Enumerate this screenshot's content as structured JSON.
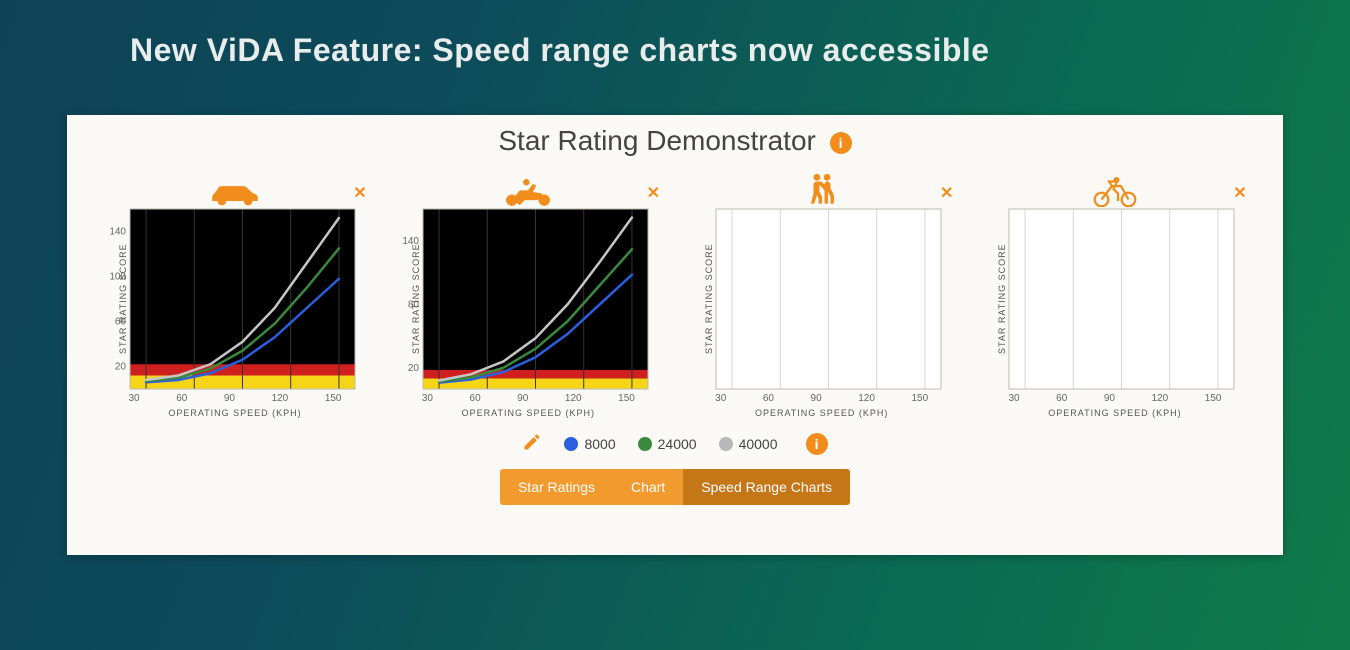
{
  "header": {
    "title": "New ViDA Feature: Speed range charts now accessible"
  },
  "panel": {
    "title": "Star Rating Demonstrator",
    "info_icon_label": "i",
    "background_color": "#fbf9f5"
  },
  "colors": {
    "accent": "#f28c1a",
    "plot_bg_dark": "#000000",
    "plot_bg_light": "#ffffff",
    "band_red": "#cf1f1f",
    "band_yellow": "#f5d516",
    "grid_light": "#d9d6d1",
    "axis_text": "#666666"
  },
  "axes": {
    "x_label": "OPERATING SPEED (KPH)",
    "y_label": "STAR RATING SCORE",
    "xlim": [
      20,
      160
    ],
    "x_ticks": [
      30,
      60,
      90,
      120,
      150
    ],
    "label_fontsize": 9,
    "tick_fontsize": 10
  },
  "charts": [
    {
      "id": "car",
      "icon": "car",
      "has_data": true,
      "background": "dark",
      "ylim": [
        0,
        160
      ],
      "y_ticks": [
        20,
        60,
        100,
        140
      ],
      "bands": [
        {
          "from": 0,
          "to": 12,
          "color": "#f5d516"
        },
        {
          "from": 12,
          "to": 22,
          "color": "#cf1f1f"
        }
      ],
      "series": [
        {
          "name": "8000",
          "color": "#2a5fe0",
          "width": 2.5,
          "points": [
            [
              30,
              6
            ],
            [
              50,
              8
            ],
            [
              70,
              14
            ],
            [
              90,
              26
            ],
            [
              110,
              46
            ],
            [
              130,
              72
            ],
            [
              150,
              98
            ]
          ]
        },
        {
          "name": "24000",
          "color": "#3a8a3d",
          "width": 2.5,
          "points": [
            [
              30,
              7
            ],
            [
              50,
              10
            ],
            [
              70,
              18
            ],
            [
              90,
              34
            ],
            [
              110,
              58
            ],
            [
              130,
              90
            ],
            [
              150,
              125
            ]
          ]
        },
        {
          "name": "40000",
          "color": "#c6c6c6",
          "width": 2.5,
          "points": [
            [
              30,
              8
            ],
            [
              50,
              12
            ],
            [
              70,
              22
            ],
            [
              90,
              42
            ],
            [
              110,
              72
            ],
            [
              130,
              112
            ],
            [
              150,
              152
            ]
          ]
        }
      ]
    },
    {
      "id": "motorcycle",
      "icon": "motorcycle",
      "has_data": true,
      "background": "dark",
      "ylim": [
        0,
        170
      ],
      "y_ticks": [
        20,
        80,
        140
      ],
      "bands": [
        {
          "from": 0,
          "to": 10,
          "color": "#f5d516"
        },
        {
          "from": 10,
          "to": 18,
          "color": "#cf1f1f"
        }
      ],
      "series": [
        {
          "name": "8000",
          "color": "#2a5fe0",
          "width": 2.5,
          "points": [
            [
              30,
              6
            ],
            [
              50,
              9
            ],
            [
              70,
              16
            ],
            [
              90,
              30
            ],
            [
              110,
              52
            ],
            [
              130,
              80
            ],
            [
              150,
              108
            ]
          ]
        },
        {
          "name": "24000",
          "color": "#3a8a3d",
          "width": 2.5,
          "points": [
            [
              30,
              7
            ],
            [
              50,
              11
            ],
            [
              70,
              20
            ],
            [
              90,
              38
            ],
            [
              110,
              64
            ],
            [
              130,
              98
            ],
            [
              150,
              132
            ]
          ]
        },
        {
          "name": "40000",
          "color": "#c6c6c6",
          "width": 2.5,
          "points": [
            [
              30,
              8
            ],
            [
              50,
              14
            ],
            [
              70,
              26
            ],
            [
              90,
              48
            ],
            [
              110,
              80
            ],
            [
              130,
              120
            ],
            [
              150,
              162
            ]
          ]
        }
      ]
    },
    {
      "id": "pedestrian",
      "icon": "pedestrian",
      "has_data": false,
      "background": "light",
      "ylim": [
        0,
        160
      ],
      "y_ticks": [],
      "bands": [],
      "series": []
    },
    {
      "id": "bicycle",
      "icon": "bicycle",
      "has_data": false,
      "background": "light",
      "ylim": [
        0,
        160
      ],
      "y_ticks": [],
      "bands": [],
      "series": []
    }
  ],
  "legend": {
    "edit_label": "edit",
    "items": [
      {
        "label": "8000",
        "color": "#2a5fe0"
      },
      {
        "label": "24000",
        "color": "#3a8a3d"
      },
      {
        "label": "40000",
        "color": "#b8b8b8"
      }
    ],
    "info_icon_label": "i"
  },
  "tabs": {
    "items": [
      {
        "label": "Star Ratings",
        "active": false
      },
      {
        "label": "Chart",
        "active": false
      },
      {
        "label": "Speed Range Charts",
        "active": true
      }
    ],
    "bg": "#f39a2e",
    "bg_active": "#c57616"
  }
}
